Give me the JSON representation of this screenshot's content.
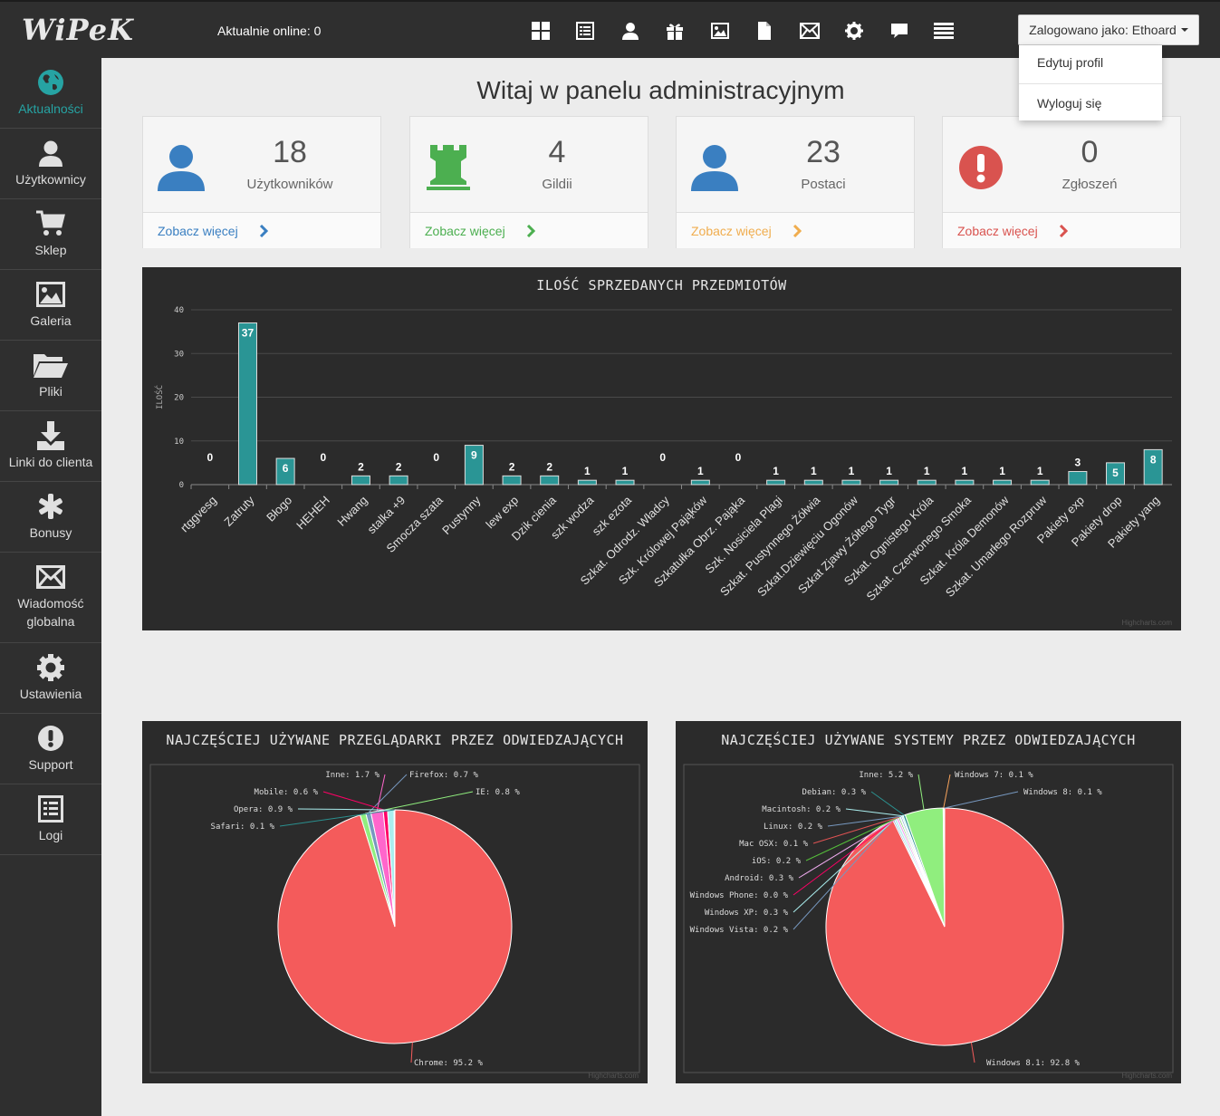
{
  "header": {
    "logo": "WiPeK",
    "online_text": "Aktualnie online: 0",
    "icons": [
      "dashboard-icon",
      "list-icon",
      "user-icon",
      "gift-icon",
      "picture-icon",
      "file-icon",
      "envelope-icon",
      "gear-icon",
      "comment-icon",
      "menu-lines-icon"
    ],
    "user_button": "Zalogowano jako: Ethoard",
    "dropdown": {
      "edit_profile": "Edytuj profil",
      "logout": "Wyloguj się"
    }
  },
  "sidebar": {
    "items": [
      {
        "label": "Aktualności",
        "icon": "globe-icon",
        "active": true
      },
      {
        "label": "Użytkownicy",
        "icon": "user-icon"
      },
      {
        "label": "Sklep",
        "icon": "cart-icon"
      },
      {
        "label": "Galeria",
        "icon": "picture-icon"
      },
      {
        "label": "Pliki",
        "icon": "folder-icon"
      },
      {
        "label": "Linki do clienta",
        "icon": "download-icon"
      },
      {
        "label": "Bonusy",
        "icon": "asterisk-icon"
      },
      {
        "label": "Wiadomość globalna",
        "line1": "Wiadomość",
        "line2": "globalna",
        "icon": "envelope-icon"
      },
      {
        "label": "Ustawienia",
        "icon": "gear-icon"
      },
      {
        "label": "Support",
        "icon": "exclamation-icon"
      },
      {
        "label": "Logi",
        "icon": "list-icon"
      }
    ]
  },
  "main": {
    "title": "Witaj w panelu administracyjnym",
    "cards": [
      {
        "number": "18",
        "label": "Użytkowników",
        "more": "Zobacz więcej",
        "color": "#3a7fc1",
        "icon": "user-icon"
      },
      {
        "number": "4",
        "label": "Gildii",
        "more": "Zobacz więcej",
        "color": "#4caf50",
        "icon": "castle-rook-icon"
      },
      {
        "number": "23",
        "label": "Postaci",
        "more": "Zobacz więcej",
        "color": "#f0ad4e",
        "icon": "user-icon"
      },
      {
        "number": "0",
        "label": "Zgłoszeń",
        "more": "Zobacz więcej",
        "color": "#d9534f",
        "icon": "exclamation-circle-icon"
      }
    ],
    "credits": "Highcharts.com"
  },
  "chart_data": [
    {
      "type": "bar",
      "title": "ILOŚĆ SPRZEDANYCH PRZEDMIOTÓW",
      "ylabel": "ILOŚĆ",
      "ylim": [
        0,
        40
      ],
      "yticks": [
        0,
        10,
        20,
        30,
        40
      ],
      "grid": true,
      "color": "#2a9595",
      "categories": [
        "rtggvesg",
        "Zatruty",
        "Błogo",
        "HEHEH",
        "Hwang",
        "stalka +9",
        "Smocza szata",
        "Pustynny",
        "lew exp",
        "Dzik cienia",
        "szk wodza",
        "szk ezota",
        "Szkat. Odrodz. Władcy",
        "Szk. Królowej Pająków",
        "Szkatułka Obrz. Pająka",
        "Szk. Nosiciela Plagi",
        "Szkat. Pustynnego Żółwia",
        "Szkat.Dziewięciu Ogonów",
        "Szkat Zjawy Żółtego Tygr",
        "Szkat. Ognistego Króla",
        "Szkat. Czerwonego Smoka",
        "Szkat. Króla Demonów",
        "Szkat. Umarłego Rozpruw",
        "Pakiety exp",
        "Pakiety drop",
        "Pakiety yang"
      ],
      "values": [
        0,
        37,
        6,
        0,
        2,
        2,
        0,
        9,
        2,
        2,
        1,
        1,
        0,
        1,
        0,
        1,
        1,
        1,
        1,
        1,
        1,
        1,
        1,
        3,
        5,
        8
      ]
    },
    {
      "type": "pie",
      "title": "NAJCZĘŚCIEJ UŻYWANE PRZEGLĄDARKI PRZEZ ODWIEDZAJĄCYCH",
      "slices": [
        {
          "name": "Chrome",
          "value": 95.2,
          "label": "Chrome: 95.2 %",
          "color": "#f45b5b"
        },
        {
          "name": "IE",
          "value": 0.8,
          "label": "IE: 0.8 %",
          "color": "#90ee7e"
        },
        {
          "name": "Firefox",
          "value": 0.7,
          "label": "Firefox: 0.7 %",
          "color": "#7798bf"
        },
        {
          "name": "Inne",
          "value": 1.7,
          "label": "Inne: 1.7 %",
          "color": "#ff66cc"
        },
        {
          "name": "Mobile",
          "value": 0.6,
          "label": "Mobile: 0.6 %",
          "color": "#ff0066"
        },
        {
          "name": "Opera",
          "value": 0.9,
          "label": "Opera: 0.9 %",
          "color": "#aaeeee"
        },
        {
          "name": "Safari",
          "value": 0.1,
          "label": "Safari: 0.1 %",
          "color": "#2b908f"
        }
      ]
    },
    {
      "type": "pie",
      "title": "NAJCZĘŚCIEJ UŻYWANE SYSTEMY PRZEZ ODWIEDZAJĄCYCH",
      "slices": [
        {
          "name": "Windows 8.1",
          "value": 92.8,
          "label": "Windows 8.1: 92.8 %",
          "color": "#f45b5b"
        },
        {
          "name": "Windows Vista",
          "value": 0.2,
          "label": "Windows Vista: 0.2 %",
          "color": "#7798bf"
        },
        {
          "name": "Windows XP",
          "value": 0.3,
          "label": "Windows XP: 0.3 %",
          "color": "#aaeeee"
        },
        {
          "name": "Windows Phone",
          "value": 0.0,
          "label": "Windows Phone: 0.0 %",
          "color": "#ff0066"
        },
        {
          "name": "Android",
          "value": 0.3,
          "label": "Android: 0.3 %",
          "color": "#eeaaee"
        },
        {
          "name": "iOS",
          "value": 0.2,
          "label": "iOS: 0.2 %",
          "color": "#55bf3b"
        },
        {
          "name": "Mac OSX",
          "value": 0.1,
          "label": "Mac OSX: 0.1 %",
          "color": "#df5353"
        },
        {
          "name": "Linux",
          "value": 0.2,
          "label": "Linux: 0.2 %",
          "color": "#7798bf"
        },
        {
          "name": "Macintosh",
          "value": 0.2,
          "label": "Macintosh: 0.2 %",
          "color": "#aaeeee"
        },
        {
          "name": "Debian",
          "value": 0.3,
          "label": "Debian: 0.3 %",
          "color": "#2b908f"
        },
        {
          "name": "Inne",
          "value": 5.2,
          "label": "Inne: 5.2 %",
          "color": "#90ee7e"
        },
        {
          "name": "Windows 7",
          "value": 0.1,
          "label": "Windows 7: 0.1 %",
          "color": "#f7a35c"
        },
        {
          "name": "Windows 8",
          "value": 0.1,
          "label": "Windows 8: 0.1 %",
          "color": "#7798bf"
        }
      ]
    }
  ]
}
